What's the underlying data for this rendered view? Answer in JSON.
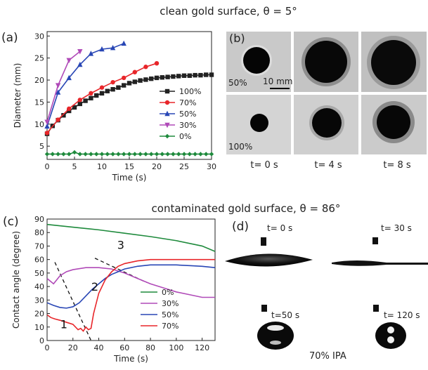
{
  "headings": {
    "clean": "clean gold surface, θ = 5°",
    "contaminated": "contaminated gold surface, θ = 86°"
  },
  "panels": {
    "a": "(a)",
    "b": "(b)",
    "c": "(c)",
    "d": "(d)"
  },
  "chart_data": [
    {
      "type": "line",
      "panel": "a",
      "xlabel": "Time (s)",
      "ylabel": "Diameter (mm)",
      "xlim": [
        0,
        30
      ],
      "ylim": [
        2,
        31
      ],
      "xticks": [
        0,
        5,
        10,
        15,
        20,
        25,
        30
      ],
      "yticks": [
        5,
        10,
        15,
        20,
        25,
        30
      ],
      "grid": false,
      "legend_position": "right",
      "series": [
        {
          "name": "100%",
          "color": "#222222",
          "marker": "square",
          "x": [
            0,
            1,
            2,
            3,
            4,
            5,
            6,
            7,
            8,
            9,
            10,
            11,
            12,
            13,
            14,
            15,
            16,
            17,
            18,
            19,
            20,
            21,
            22,
            23,
            24,
            25,
            26,
            27,
            28,
            29,
            30
          ],
          "y": [
            7.8,
            9.6,
            10.9,
            12.0,
            13.0,
            13.8,
            14.6,
            15.3,
            15.9,
            16.5,
            17.0,
            17.5,
            17.9,
            18.3,
            18.8,
            19.3,
            19.6,
            19.9,
            20.1,
            20.3,
            20.5,
            20.6,
            20.7,
            20.8,
            20.9,
            21.0,
            21.0,
            21.1,
            21.1,
            21.2,
            21.2
          ]
        },
        {
          "name": "70%",
          "color": "#e8262a",
          "marker": "circle",
          "x": [
            0,
            2,
            4,
            6,
            8,
            10,
            12,
            14,
            16,
            18,
            20
          ],
          "y": [
            8.0,
            11.0,
            13.5,
            15.5,
            17.0,
            18.3,
            19.5,
            20.5,
            21.8,
            23.0,
            23.8
          ]
        },
        {
          "name": "50%",
          "color": "#2846b5",
          "marker": "triangle-up",
          "x": [
            0,
            2,
            4,
            6,
            8,
            10,
            12,
            14
          ],
          "y": [
            9.5,
            17.2,
            20.5,
            23.5,
            26.0,
            27.0,
            27.3,
            28.3
          ]
        },
        {
          "name": "30%",
          "color": "#b04ab8",
          "marker": "triangle-down",
          "x": [
            0,
            2,
            4,
            6
          ],
          "y": [
            10.5,
            18.8,
            24.5,
            26.5
          ]
        },
        {
          "name": "0%",
          "color": "#1e8a3c",
          "marker": "diamond",
          "x": [
            0,
            1,
            2,
            3,
            4,
            5,
            6,
            7,
            8,
            9,
            10,
            11,
            12,
            13,
            14,
            15,
            16,
            17,
            18,
            19,
            20,
            21,
            22,
            23,
            24,
            25,
            26,
            27,
            28,
            29,
            30
          ],
          "y": [
            3.2,
            3.2,
            3.2,
            3.2,
            3.2,
            3.6,
            3.2,
            3.2,
            3.2,
            3.2,
            3.2,
            3.2,
            3.2,
            3.2,
            3.2,
            3.2,
            3.2,
            3.2,
            3.2,
            3.2,
            3.2,
            3.2,
            3.2,
            3.2,
            3.2,
            3.2,
            3.2,
            3.2,
            3.2,
            3.2,
            3.2
          ]
        }
      ]
    },
    {
      "type": "line",
      "panel": "c",
      "xlabel": "Time (s)",
      "ylabel": "Contact angle (degree)",
      "xlim": [
        0,
        130
      ],
      "ylim": [
        0,
        90
      ],
      "xticks": [
        0,
        20,
        40,
        60,
        80,
        100,
        120
      ],
      "yticks": [
        0,
        10,
        20,
        30,
        40,
        50,
        60,
        70,
        80,
        90
      ],
      "grid": false,
      "legend_position": "bottom-right",
      "series": [
        {
          "name": "0%",
          "color": "#1e8a3c",
          "x": [
            0,
            20,
            40,
            60,
            80,
            100,
            120,
            130
          ],
          "y": [
            86,
            84,
            82,
            79.5,
            77,
            74,
            70,
            66
          ]
        },
        {
          "name": "30%",
          "color": "#b04ab8",
          "x": [
            0,
            5,
            10,
            15,
            20,
            30,
            40,
            50,
            60,
            70,
            80,
            90,
            100,
            110,
            120,
            130
          ],
          "y": [
            46,
            42,
            48,
            51,
            52.5,
            54,
            54,
            53,
            50,
            46,
            42,
            39,
            36,
            34,
            32,
            32
          ]
        },
        {
          "name": "50%",
          "color": "#2846b5",
          "x": [
            0,
            5,
            10,
            15,
            20,
            25,
            30,
            35,
            40,
            45,
            50,
            55,
            60,
            70,
            80,
            90,
            100,
            110,
            120,
            130
          ],
          "y": [
            28,
            26,
            24.5,
            24,
            25,
            28,
            33,
            38,
            42,
            46,
            49,
            51,
            53,
            55,
            56,
            56,
            56,
            55.5,
            55,
            54
          ]
        },
        {
          "name": "70%",
          "color": "#e8262a",
          "x": [
            0,
            3,
            6,
            10,
            15,
            20,
            24,
            26,
            28,
            30,
            32,
            34,
            36,
            40,
            45,
            50,
            55,
            60,
            70,
            80,
            90,
            100,
            110,
            120,
            130
          ],
          "y": [
            19,
            17,
            16,
            15,
            13.5,
            12,
            8,
            9,
            7,
            10,
            8,
            9,
            20,
            35,
            45,
            51,
            55,
            57,
            59,
            60,
            60,
            60,
            60,
            60,
            60
          ]
        }
      ],
      "annotations": [
        {
          "label": "1",
          "x": 13,
          "y": 9
        },
        {
          "label": "2",
          "x": 37,
          "y": 37
        },
        {
          "label": "3",
          "x": 57,
          "y": 68
        }
      ],
      "dashed_guides": [
        {
          "x": [
            6,
            34
          ],
          "y": [
            58,
            0
          ]
        },
        {
          "x": [
            37,
            77
          ],
          "y": [
            61,
            43
          ]
        }
      ]
    }
  ],
  "panel_b": {
    "scale_bar": "10 mm",
    "row_labels": [
      "50%",
      "100%"
    ],
    "time_labels": [
      "t= 0 s",
      "t= 4 s",
      "t= 8 s"
    ]
  },
  "panel_d": {
    "frame_labels": [
      "t= 0 s",
      "t= 30 s",
      "t=50 s",
      "t= 120 s"
    ],
    "caption": "70% IPA"
  }
}
